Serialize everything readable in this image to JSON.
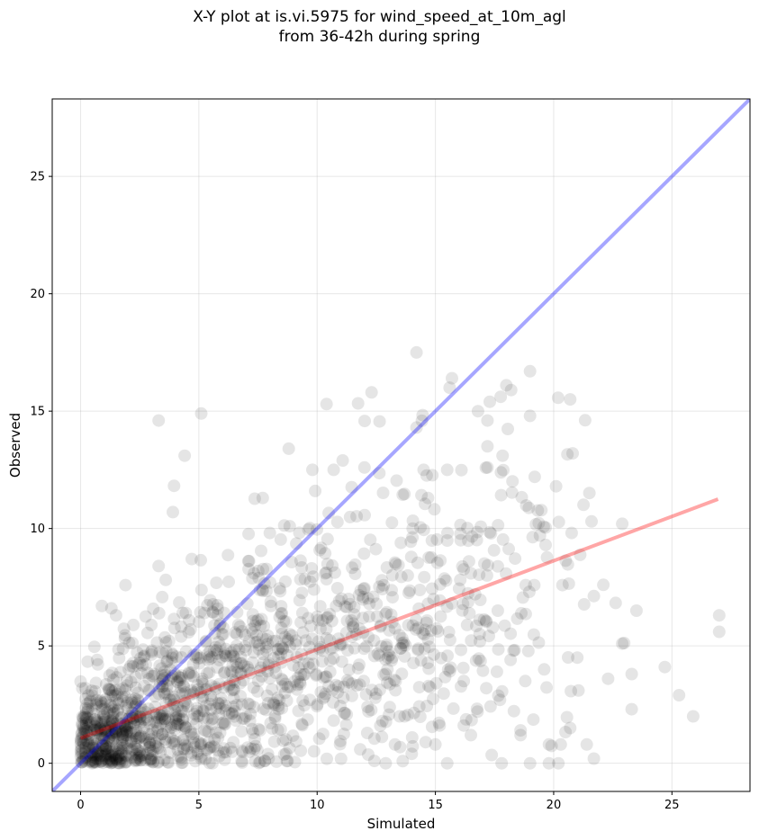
{
  "chart_data": {
    "type": "scatter",
    "title_line1": "X-Y plot at is.vi.5975 for wind_speed_at_10m_agl",
    "title_line2": "from 36-42h during spring",
    "xlabel": "Simulated",
    "ylabel": "Observed",
    "xlim": [
      -1.2,
      28.3
    ],
    "ylim": [
      -1.2,
      28.3
    ],
    "xticks": [
      0,
      5,
      10,
      15,
      20,
      25
    ],
    "yticks": [
      0,
      5,
      10,
      15,
      20,
      25
    ],
    "grid": true,
    "point_color": "#000000",
    "point_alpha": 0.1,
    "lines": [
      {
        "name": "one-to-one-line",
        "color": "#0000ff",
        "alpha": 0.35,
        "x": [
          -1.2,
          28.3
        ],
        "y": [
          -1.2,
          28.3
        ]
      },
      {
        "name": "regression-line",
        "color": "#ff0000",
        "alpha": 0.35,
        "x": [
          0.0,
          26.95
        ],
        "y": [
          1.07,
          11.25
        ]
      }
    ],
    "outliers": [
      [
        14.2,
        17.5
      ],
      [
        19.0,
        16.7
      ],
      [
        15.7,
        16.4
      ],
      [
        15.6,
        16.0
      ],
      [
        18.0,
        16.1
      ],
      [
        18.2,
        15.9
      ],
      [
        12.3,
        15.8
      ],
      [
        20.7,
        15.5
      ],
      [
        17.3,
        15.4
      ],
      [
        10.4,
        15.3
      ],
      [
        16.8,
        15.0
      ],
      [
        19.0,
        14.8
      ],
      [
        5.1,
        14.9
      ],
      [
        3.3,
        14.6
      ],
      [
        17.2,
        14.6
      ],
      [
        14.2,
        14.3
      ],
      [
        4.4,
        13.1
      ],
      [
        8.8,
        13.4
      ],
      [
        17.2,
        13.5
      ],
      [
        20.8,
        13.2
      ],
      [
        9.8,
        12.5
      ],
      [
        10.7,
        12.5
      ],
      [
        12.0,
        12.6
      ],
      [
        14.5,
        12.5
      ],
      [
        15.5,
        12.5
      ],
      [
        17.2,
        12.6
      ],
      [
        20.1,
        11.8
      ],
      [
        19.2,
        12.2
      ],
      [
        21.6,
        10.3
      ],
      [
        22.9,
        10.2
      ],
      [
        22.1,
        7.6
      ],
      [
        23.5,
        6.5
      ],
      [
        27.0,
        6.3
      ],
      [
        27.0,
        5.6
      ],
      [
        22.9,
        5.1
      ],
      [
        21.0,
        4.5
      ],
      [
        24.7,
        4.1
      ],
      [
        23.3,
        3.8
      ],
      [
        22.3,
        3.6
      ],
      [
        25.3,
        2.9
      ],
      [
        23.3,
        2.3
      ],
      [
        25.9,
        2.0
      ],
      [
        20.7,
        1.5
      ],
      [
        21.4,
        0.8
      ],
      [
        21.7,
        0.2
      ],
      [
        20.3,
        0.8
      ],
      [
        19.8,
        0.8
      ],
      [
        19.0,
        0.0
      ],
      [
        19.8,
        0.0
      ],
      [
        17.8,
        0.0
      ],
      [
        15.5,
        0.0
      ],
      [
        12.9,
        0.0
      ],
      [
        14.0,
        0.4
      ],
      [
        15.0,
        0.8
      ],
      [
        13.7,
        2.0
      ],
      [
        16.5,
        1.2
      ],
      [
        18.6,
        1.2
      ],
      [
        16.2,
        3.5
      ],
      [
        12.9,
        3.8
      ],
      [
        0.2,
        3.2
      ],
      [
        0.7,
        4.4
      ],
      [
        0.9,
        6.7
      ],
      [
        1.3,
        6.6
      ],
      [
        3.9,
        10.7
      ],
      [
        7.7,
        11.3
      ],
      [
        1.5,
        6.3
      ],
      [
        3.3,
        8.4
      ],
      [
        4.7,
        8.7
      ],
      [
        18.8,
        3.5
      ],
      [
        19.6,
        4.0
      ],
      [
        17.6,
        3.9
      ],
      [
        20.2,
        0.0
      ]
    ],
    "clusters": [
      {
        "mx": 1.2,
        "my": 1.0,
        "sx": 0.9,
        "sy": 1.0,
        "n": 320
      },
      {
        "mx": 3.5,
        "my": 2.4,
        "sx": 1.6,
        "sy": 1.7,
        "n": 330
      },
      {
        "mx": 7.0,
        "my": 3.8,
        "sx": 2.4,
        "sy": 2.4,
        "n": 360
      },
      {
        "mx": 11.0,
        "my": 5.3,
        "sx": 2.6,
        "sy": 2.8,
        "n": 260
      },
      {
        "mx": 15.5,
        "my": 6.8,
        "sx": 2.3,
        "sy": 3.1,
        "n": 150
      },
      {
        "mx": 18.8,
        "my": 7.5,
        "sx": 1.6,
        "sy": 3.4,
        "n": 60
      }
    ]
  }
}
